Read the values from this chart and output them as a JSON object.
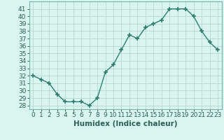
{
  "x": [
    0,
    1,
    2,
    3,
    4,
    5,
    6,
    7,
    8,
    9,
    10,
    11,
    12,
    13,
    14,
    15,
    16,
    17,
    18,
    19,
    20,
    21,
    22,
    23
  ],
  "y": [
    32,
    31.5,
    31,
    29.5,
    28.5,
    28.5,
    28.5,
    28,
    29,
    32.5,
    33.5,
    35.5,
    37.5,
    37,
    38.5,
    39,
    39.5,
    41,
    41,
    41,
    40,
    38,
    36.5,
    35.5
  ],
  "line_color": "#2e7d6e",
  "marker": "+",
  "marker_size": 4,
  "marker_lw": 1.2,
  "bg_color": "#d8f5f0",
  "grid_color": "#b8d8d2",
  "xlabel": "Humidex (Indice chaleur)",
  "ylim": [
    27.5,
    42
  ],
  "yticks": [
    28,
    29,
    30,
    31,
    32,
    33,
    34,
    35,
    36,
    37,
    38,
    39,
    40,
    41
  ],
  "xlim": [
    -0.5,
    23.5
  ],
  "xticks": [
    0,
    1,
    2,
    3,
    4,
    5,
    6,
    7,
    8,
    9,
    10,
    11,
    12,
    13,
    14,
    15,
    16,
    17,
    18,
    19,
    20,
    21,
    22,
    23
  ],
  "tick_fontsize": 6.5,
  "xlabel_fontsize": 7.5,
  "line_width": 1.0
}
